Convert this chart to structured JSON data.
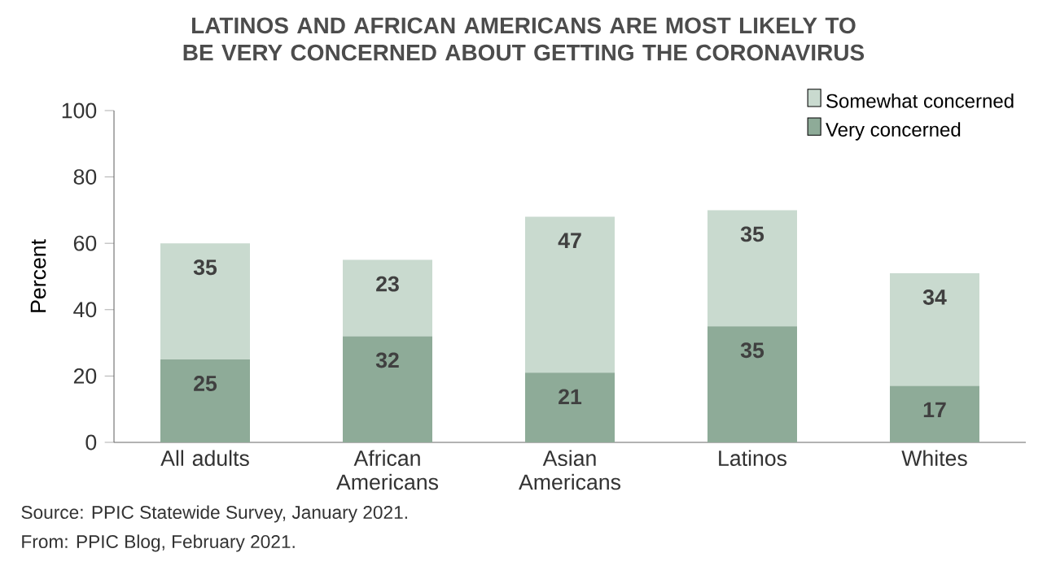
{
  "chart_data": {
    "type": "bar",
    "stacked": true,
    "title": "LATINOS AND AFRICAN AMERICANS ARE MOST LIKELY TO BE VERY CONCERNED ABOUT GETTING THE CORONAVIRUS",
    "ylabel": "Percent",
    "categories": [
      "All adults",
      "African Americans",
      "Asian Americans",
      "Latinos",
      "Whites"
    ],
    "series": [
      {
        "name": "Very concerned",
        "color": "#8eab98",
        "values": [
          25,
          32,
          21,
          35,
          17
        ]
      },
      {
        "name": "Somewhat concerned",
        "color": "#c9dacf",
        "values": [
          35,
          23,
          47,
          35,
          34
        ]
      }
    ],
    "ylim": [
      0,
      100
    ],
    "yticks": [
      0,
      20,
      40,
      60,
      80,
      100
    ],
    "data_labels": true,
    "legend": "top right",
    "grid": false,
    "annotations": [
      "Source: PPIC Statewide Survey, January 2021.",
      "From: PPIC Blog, February 2021."
    ]
  }
}
